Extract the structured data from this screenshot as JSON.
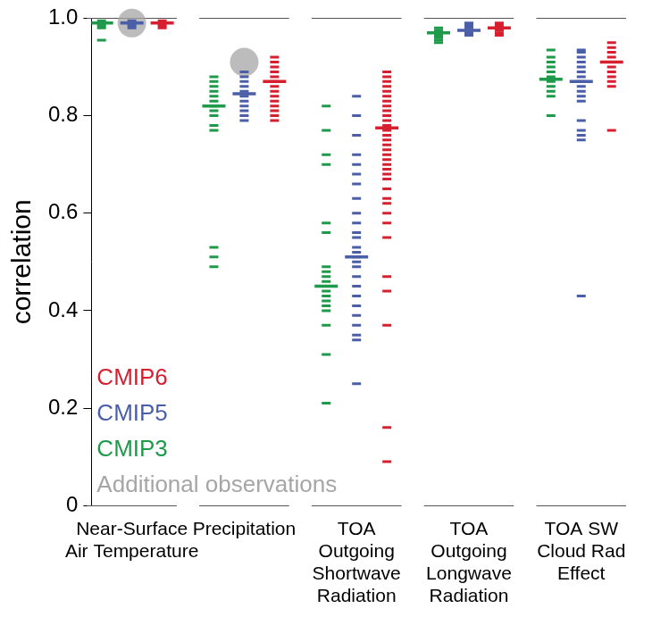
{
  "chart_data": {
    "type": "scatter",
    "y_label": "correlation",
    "categories": [
      "Near-Surface\nAir Temperature",
      "Precipitation",
      "TOA\nOutgoing\nShortwave\nRadiation",
      "TOA\nOutgoing\nLongwave\nRadiation",
      "TOA SW\nCloud Rad\nEffect"
    ],
    "ylim": [
      0,
      1
    ],
    "yticks": [
      0,
      0.2,
      0.4,
      0.6,
      0.8,
      {
        "value": 1,
        "label": "1.0"
      }
    ],
    "grid": false,
    "legend": "lower left",
    "series": [
      {
        "name": "CMIP6",
        "color": "#d62030",
        "marker": "dash",
        "mean": [
          0.99,
          0.87,
          0.775,
          0.98,
          0.91
        ],
        "values": [
          [
            0.995,
            0.99,
            0.985,
            0.98
          ],
          [
            0.92,
            0.91,
            0.9,
            0.89,
            0.88,
            0.87,
            0.86,
            0.85,
            0.84,
            0.83,
            0.82,
            0.81,
            0.8,
            0.79
          ],
          [
            0.89,
            0.88,
            0.87,
            0.86,
            0.85,
            0.84,
            0.83,
            0.82,
            0.81,
            0.8,
            0.79,
            0.78,
            0.77,
            0.76,
            0.75,
            0.74,
            0.73,
            0.72,
            0.71,
            0.7,
            0.69,
            0.68,
            0.67,
            0.65,
            0.63,
            0.62,
            0.6,
            0.58,
            0.55,
            0.47,
            0.44,
            0.37,
            0.16,
            0.09
          ],
          [
            0.99,
            0.985,
            0.98,
            0.975,
            0.97,
            0.965
          ],
          [
            0.95,
            0.94,
            0.93,
            0.92,
            0.91,
            0.9,
            0.89,
            0.88,
            0.87,
            0.86,
            0.77
          ]
        ]
      },
      {
        "name": "CMIP5",
        "color": "#4a5fa8",
        "marker": "dash",
        "mean": [
          0.99,
          0.845,
          0.51,
          0.975,
          0.87
        ],
        "values": [
          [
            0.995,
            0.99,
            0.985,
            0.98
          ],
          [
            0.89,
            0.88,
            0.87,
            0.86,
            0.85,
            0.84,
            0.83,
            0.82,
            0.81,
            0.8,
            0.79
          ],
          [
            0.84,
            0.8,
            0.76,
            0.72,
            0.7,
            0.68,
            0.66,
            0.63,
            0.6,
            0.58,
            0.56,
            0.55,
            0.53,
            0.52,
            0.51,
            0.5,
            0.49,
            0.47,
            0.45,
            0.43,
            0.41,
            0.39,
            0.37,
            0.35,
            0.34,
            0.25
          ],
          [
            0.99,
            0.985,
            0.98,
            0.975,
            0.97,
            0.965
          ],
          [
            0.935,
            0.93,
            0.92,
            0.91,
            0.9,
            0.89,
            0.88,
            0.87,
            0.86,
            0.85,
            0.84,
            0.83,
            0.79,
            0.77,
            0.76,
            0.75,
            0.43
          ]
        ]
      },
      {
        "name": "CMIP3",
        "color": "#1f9a4a",
        "marker": "dash",
        "mean": [
          0.99,
          0.82,
          0.45,
          0.97,
          0.875
        ],
        "values": [
          [
            0.995,
            0.99,
            0.985,
            0.98,
            0.955
          ],
          [
            0.88,
            0.87,
            0.86,
            0.85,
            0.84,
            0.83,
            0.82,
            0.81,
            0.8,
            0.78,
            0.77,
            0.53,
            0.51,
            0.49
          ],
          [
            0.82,
            0.77,
            0.72,
            0.7,
            0.58,
            0.56,
            0.49,
            0.48,
            0.47,
            0.46,
            0.45,
            0.44,
            0.43,
            0.42,
            0.41,
            0.4,
            0.37,
            0.31,
            0.21
          ],
          [
            0.98,
            0.975,
            0.97,
            0.965,
            0.96,
            0.955,
            0.95
          ],
          [
            0.935,
            0.92,
            0.91,
            0.9,
            0.89,
            0.88,
            0.87,
            0.86,
            0.85,
            0.84,
            0.8
          ]
        ]
      },
      {
        "name": "Additional observations",
        "color": "#a6a6a6",
        "marker": "circle",
        "values": [
          0.99,
          0.91,
          null,
          null,
          null
        ]
      }
    ]
  }
}
